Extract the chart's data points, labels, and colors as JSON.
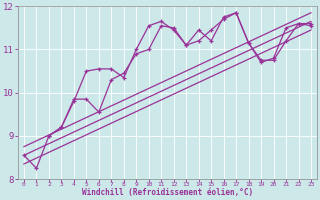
{
  "xlabel": "Windchill (Refroidissement éolien,°C)",
  "bg_color": "#cce8e8",
  "line_color": "#993399",
  "xlim": [
    -0.5,
    23.5
  ],
  "ylim": [
    8,
    12
  ],
  "yticks": [
    8,
    9,
    10,
    11,
    12
  ],
  "xticks": [
    0,
    1,
    2,
    3,
    4,
    5,
    6,
    7,
    8,
    9,
    10,
    11,
    12,
    13,
    14,
    15,
    16,
    17,
    18,
    19,
    20,
    21,
    22,
    23
  ],
  "line1_x": [
    0,
    1,
    2,
    3,
    4,
    5,
    6,
    7,
    8,
    9,
    10,
    11,
    12,
    13,
    14,
    15,
    16,
    17,
    18,
    19,
    20,
    21,
    22,
    23
  ],
  "line1_y": [
    8.55,
    8.25,
    9.0,
    9.2,
    9.8,
    10.5,
    10.55,
    10.55,
    10.35,
    11.0,
    11.55,
    11.65,
    11.45,
    11.1,
    11.45,
    11.2,
    11.75,
    11.85,
    11.15,
    10.7,
    10.8,
    11.5,
    11.6,
    11.6
  ],
  "line2_x": [
    0,
    23
  ],
  "line2_y": [
    8.75,
    11.85
  ],
  "line3_x": [
    0,
    23
  ],
  "line3_y": [
    8.55,
    11.65
  ],
  "line4_x": [
    0,
    23
  ],
  "line4_y": [
    8.35,
    11.45
  ],
  "line5_x": [
    2,
    3,
    4,
    5,
    6,
    7,
    8,
    9,
    10,
    11,
    12,
    13,
    14,
    15,
    16,
    17,
    18,
    19,
    20,
    21,
    22,
    23
  ],
  "line5_y": [
    9.0,
    9.2,
    9.85,
    9.85,
    9.55,
    10.3,
    10.45,
    10.9,
    11.0,
    11.55,
    11.5,
    11.1,
    11.2,
    11.45,
    11.7,
    11.85,
    11.15,
    10.75,
    10.75,
    11.2,
    11.6,
    11.55
  ]
}
